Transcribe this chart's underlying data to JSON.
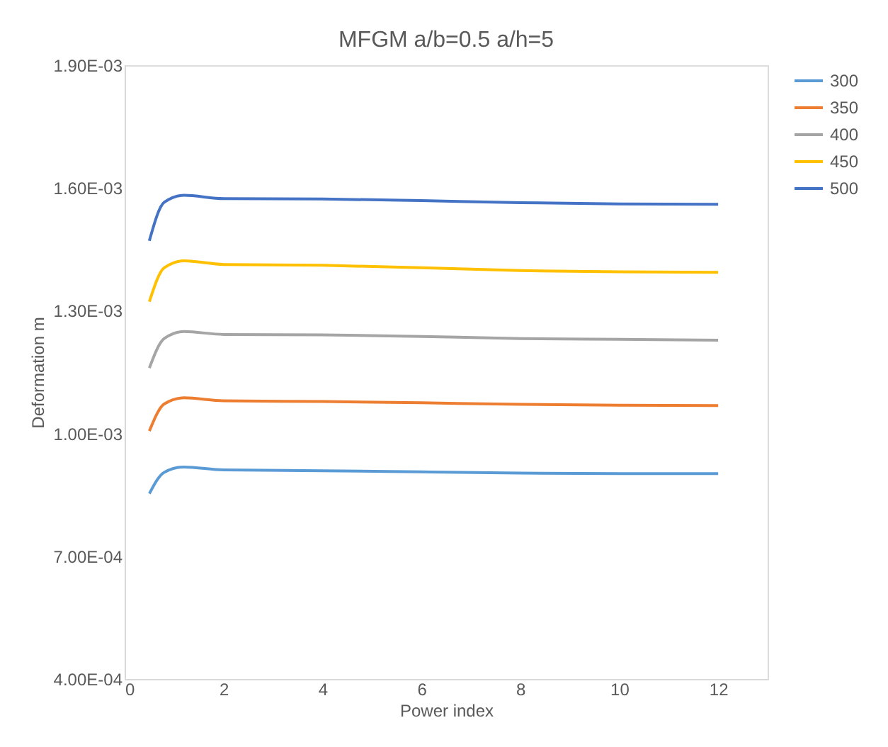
{
  "chart_data": {
    "type": "line",
    "title": "MFGM a/b=0.5 a/h=5",
    "xlabel": "Power index",
    "ylabel": "Deformation m",
    "x": [
      0.5,
      0.8,
      1.2,
      2,
      4,
      6,
      8,
      10,
      12
    ],
    "series": [
      {
        "name": "300",
        "color": "#5b9bd5",
        "values": [
          0.000853,
          0.000905,
          0.000918,
          0.000911,
          0.000909,
          0.000906,
          0.000903,
          0.000902,
          0.000902
        ]
      },
      {
        "name": "350",
        "color": "#ed7d31",
        "values": [
          0.001006,
          0.001072,
          0.001087,
          0.00108,
          0.001078,
          0.001075,
          0.001071,
          0.001069,
          0.001068
        ]
      },
      {
        "name": "400",
        "color": "#a5a5a5",
        "values": [
          0.00116,
          0.001232,
          0.001249,
          0.001242,
          0.001241,
          0.001237,
          0.001232,
          0.00123,
          0.001228
        ]
      },
      {
        "name": "450",
        "color": "#ffc000",
        "values": [
          0.001322,
          0.001405,
          0.001422,
          0.001413,
          0.001411,
          0.001405,
          0.001398,
          0.001395,
          0.001394
        ]
      },
      {
        "name": "500",
        "color": "#4472c4",
        "values": [
          0.001471,
          0.001565,
          0.001582,
          0.001574,
          0.001573,
          0.001569,
          0.001564,
          0.001561,
          0.00156
        ]
      }
    ],
    "xlim": [
      0,
      13
    ],
    "xticks": [
      0,
      2,
      4,
      6,
      8,
      10,
      12
    ],
    "ylim": [
      0.0004,
      0.0019
    ],
    "yticks": [
      {
        "value": 0.0004,
        "label": "4.00E-04"
      },
      {
        "value": 0.0007,
        "label": "7.00E-04"
      },
      {
        "value": 0.001,
        "label": "1.00E-03"
      },
      {
        "value": 0.0013,
        "label": "1.30E-03"
      },
      {
        "value": 0.0016,
        "label": "1.60E-03"
      },
      {
        "value": 0.0019,
        "label": "1.90E-03"
      }
    ],
    "grid": false,
    "legend": "right",
    "marker": "none",
    "line_style": "solid"
  }
}
